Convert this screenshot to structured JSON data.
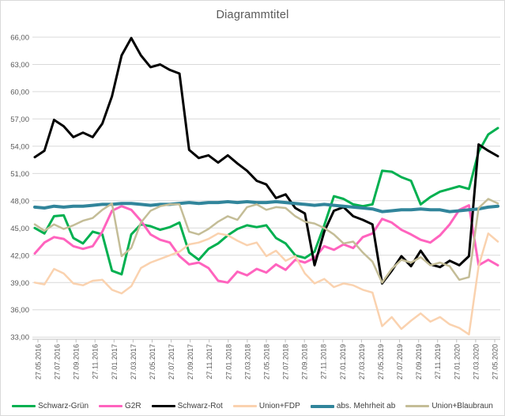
{
  "title": "Diagrammtitel",
  "chart_data": {
    "type": "line",
    "title": "Diagrammtitel",
    "xlabel": "",
    "ylabel": "",
    "ylim": [
      33,
      66
    ],
    "y_tick_step": 3,
    "grid": true,
    "legend_position": "bottom",
    "y_tick_labels": [
      "66,00",
      "63,00",
      "60,00",
      "57,00",
      "54,00",
      "51,00",
      "48,00",
      "45,00",
      "42,00",
      "39,00",
      "36,00",
      "33,00"
    ],
    "x_tick_labels": [
      "27.05.2016",
      "27.07.2016",
      "27.09.2016",
      "27.11.2016",
      "27.01.2017",
      "27.03.2017",
      "27.05.2017",
      "27.07.2017",
      "27.09.2017",
      "27.11.2017",
      "27.01.2018",
      "27.03.2018",
      "27.05.2018",
      "27.07.2018",
      "27.09.2018",
      "27.11.2018",
      "27.01.2019",
      "27.03.2019",
      "27.05.2019",
      "27.07.2019",
      "27.09.2019",
      "27.11.2019",
      "27.01.2020",
      "27.03.2020",
      "27.05.2020"
    ],
    "x_resolution": "monthly from 27.05.2016 to 27.05.2020 (49 points)",
    "series": [
      {
        "name": "Schwarz-Grün",
        "color": "#00B050",
        "width": 3,
        "values": [
          45.0,
          44.4,
          46.3,
          46.4,
          43.9,
          43.3,
          44.6,
          44.3,
          40.3,
          39.9,
          44.3,
          45.4,
          45.2,
          44.8,
          45.1,
          45.6,
          42.3,
          41.5,
          42.7,
          43.3,
          44.2,
          44.9,
          45.3,
          45.1,
          45.3,
          43.9,
          43.3,
          42.0,
          41.7,
          42.4,
          45.3,
          48.5,
          48.2,
          47.6,
          47.4,
          47.6,
          51.3,
          51.2,
          50.6,
          50.2,
          47.6,
          48.4,
          49.0,
          49.3,
          49.6,
          49.3,
          53.4,
          55.3,
          56.0
        ]
      },
      {
        "name": "G2R",
        "color": "#FF63BE",
        "width": 3,
        "values": [
          42.2,
          43.4,
          44.0,
          43.8,
          43.0,
          42.7,
          43.0,
          44.6,
          46.9,
          47.4,
          47.0,
          45.8,
          44.3,
          43.7,
          43.4,
          41.9,
          41.0,
          41.2,
          40.6,
          39.2,
          39.0,
          40.2,
          39.8,
          40.5,
          40.1,
          41.0,
          40.4,
          41.5,
          41.2,
          41.7,
          43.0,
          42.6,
          43.2,
          42.8,
          44.0,
          44.4,
          46.0,
          45.6,
          44.8,
          44.3,
          43.7,
          43.4,
          44.2,
          45.4,
          47.0,
          47.5,
          40.9,
          41.5,
          40.9
        ]
      },
      {
        "name": "Schwarz-Rot",
        "color": "#000000",
        "width": 3,
        "values": [
          52.8,
          53.5,
          56.9,
          56.2,
          55.0,
          55.5,
          55.0,
          56.5,
          59.5,
          64.0,
          65.9,
          64.0,
          62.7,
          63.0,
          62.4,
          62.0,
          53.6,
          52.7,
          53.0,
          52.2,
          53.0,
          52.1,
          51.3,
          50.2,
          49.8,
          48.3,
          48.7,
          47.2,
          46.6,
          40.9,
          44.6,
          46.9,
          47.3,
          46.3,
          45.9,
          45.4,
          38.9,
          40.3,
          41.9,
          40.8,
          42.5,
          41.0,
          40.7,
          41.4,
          40.9,
          41.9,
          54.2,
          53.5,
          52.9
        ]
      },
      {
        "name": "Union+FDP",
        "color": "#FAD2AF",
        "width": 2.5,
        "values": [
          39.0,
          38.8,
          40.5,
          40.0,
          38.9,
          38.7,
          39.2,
          39.3,
          38.2,
          37.8,
          38.6,
          40.6,
          41.2,
          41.6,
          42.0,
          42.4,
          43.2,
          43.4,
          43.8,
          44.4,
          44.2,
          43.6,
          43.1,
          43.4,
          41.9,
          42.5,
          41.4,
          41.9,
          40.0,
          38.9,
          39.4,
          38.5,
          38.9,
          38.7,
          38.2,
          37.9,
          34.2,
          35.2,
          33.9,
          34.8,
          35.6,
          34.7,
          35.2,
          34.4,
          34.0,
          33.3,
          40.8,
          44.4,
          43.5
        ]
      },
      {
        "name": "abs. Mehrheit ab",
        "color": "#31859B",
        "width": 4,
        "values": [
          47.3,
          47.2,
          47.4,
          47.3,
          47.4,
          47.4,
          47.5,
          47.6,
          47.6,
          47.7,
          47.7,
          47.6,
          47.5,
          47.6,
          47.6,
          47.7,
          47.8,
          47.7,
          47.8,
          47.8,
          47.9,
          47.8,
          47.9,
          47.8,
          47.8,
          47.9,
          47.8,
          47.7,
          47.6,
          47.5,
          47.6,
          47.5,
          47.4,
          47.3,
          47.2,
          47.1,
          46.8,
          46.9,
          47.0,
          47.0,
          47.1,
          47.0,
          47.0,
          46.8,
          46.9,
          47.0,
          47.1,
          47.3,
          47.4
        ]
      },
      {
        "name": "Union+Blaubraun",
        "color": "#C4BD97",
        "width": 2.5,
        "values": [
          45.4,
          44.7,
          45.4,
          44.9,
          45.3,
          45.8,
          46.1,
          47.0,
          47.7,
          41.9,
          42.8,
          45.6,
          46.9,
          47.4,
          47.6,
          47.6,
          44.6,
          44.3,
          44.9,
          45.7,
          46.3,
          45.9,
          47.3,
          47.6,
          47.0,
          47.3,
          47.2,
          46.3,
          45.7,
          45.5,
          45.0,
          44.3,
          43.3,
          43.5,
          42.3,
          41.3,
          39.0,
          40.5,
          41.5,
          41.2,
          41.8,
          40.9,
          41.2,
          40.8,
          39.3,
          39.6,
          47.2,
          48.2,
          47.7
        ]
      }
    ],
    "colors": {
      "grid": "#D9D9D9",
      "axis": "#BFBFBF",
      "text": "#595959",
      "legend_text": "#404040",
      "background": "#FFFFFF"
    }
  }
}
